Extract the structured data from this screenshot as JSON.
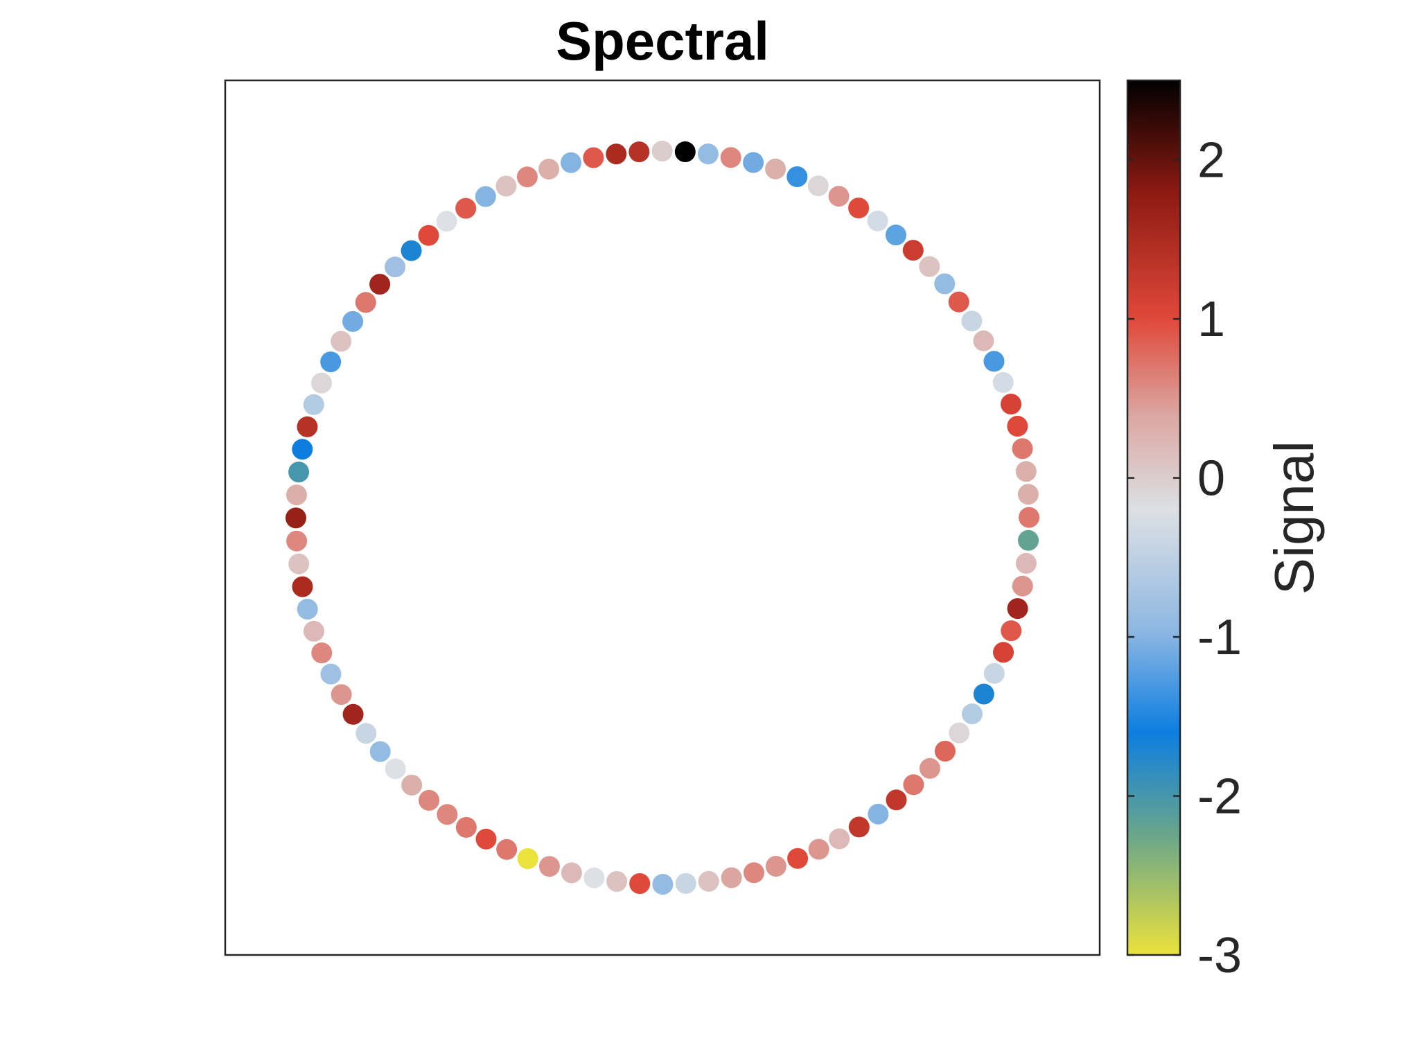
{
  "chart_data": {
    "type": "scatter",
    "title": "Spectral",
    "xlabel": "",
    "ylabel": "",
    "axes_ticks_visible": false,
    "grid": false,
    "layout_note": "nodes arranged on a ring (graph signal on a ring graph)",
    "node_count": 100,
    "colorbar": {
      "label": "Signal",
      "range": [
        -3,
        2.5
      ],
      "ticks": [
        2,
        1,
        0,
        -1,
        -2,
        -3
      ],
      "tick_labels": [
        "2",
        "1",
        "0",
        "-1",
        "-2",
        "-3"
      ],
      "colormap": [
        {
          "value": -3.0,
          "color": "#ebe23c"
        },
        {
          "value": -2.25,
          "color": "#6aa68a"
        },
        {
          "value": -1.6,
          "color": "#0d7ee0"
        },
        {
          "value": -0.95,
          "color": "#8fb8e2"
        },
        {
          "value": -0.2,
          "color": "#dde0e4"
        },
        {
          "value": 0.4,
          "color": "#dba6a0"
        },
        {
          "value": 1.0,
          "color": "#e0483a"
        },
        {
          "value": 1.8,
          "color": "#8c1a12"
        },
        {
          "value": 2.5,
          "color": "#000000"
        }
      ]
    },
    "series": [
      {
        "values": [
          2.5,
          -0.9,
          0.6,
          -1.1,
          0.3,
          -1.4,
          -0.1,
          0.5,
          1.0,
          -0.3,
          -1.2,
          1.2,
          0.1,
          -0.9,
          0.9,
          -0.4,
          0.2,
          -1.3,
          -0.3,
          1.1,
          1.0,
          0.7,
          0.3,
          0.3,
          0.7,
          -2.2,
          0.2,
          0.5,
          1.6,
          0.9,
          1.1,
          -0.4,
          -1.7,
          -0.6,
          -0.1,
          0.8,
          0.5,
          0.7,
          1.3,
          -1.0,
          1.3,
          0.2,
          0.5,
          1.0,
          0.5,
          0.6,
          0.4,
          0.1,
          -0.4,
          -0.9,
          1.0,
          0.1,
          -0.2,
          0.2,
          0.5,
          -3.0,
          0.7,
          1.0,
          0.7,
          0.6,
          0.6,
          0.3,
          -0.2,
          -0.9,
          -0.4,
          1.6,
          0.5,
          -0.8,
          0.6,
          0.2,
          -0.9,
          1.5,
          0.1,
          0.6,
          1.7,
          0.3,
          -2.0,
          -1.6,
          1.4,
          -0.6,
          -0.1,
          -1.3,
          0.1,
          -1.1,
          0.7,
          1.6,
          -0.8,
          -1.7,
          1.0,
          -0.2,
          0.9,
          -1.0,
          0.1,
          0.6,
          0.3,
          -1.0,
          0.9,
          1.5,
          1.4,
          0.0
        ]
      }
    ]
  }
}
